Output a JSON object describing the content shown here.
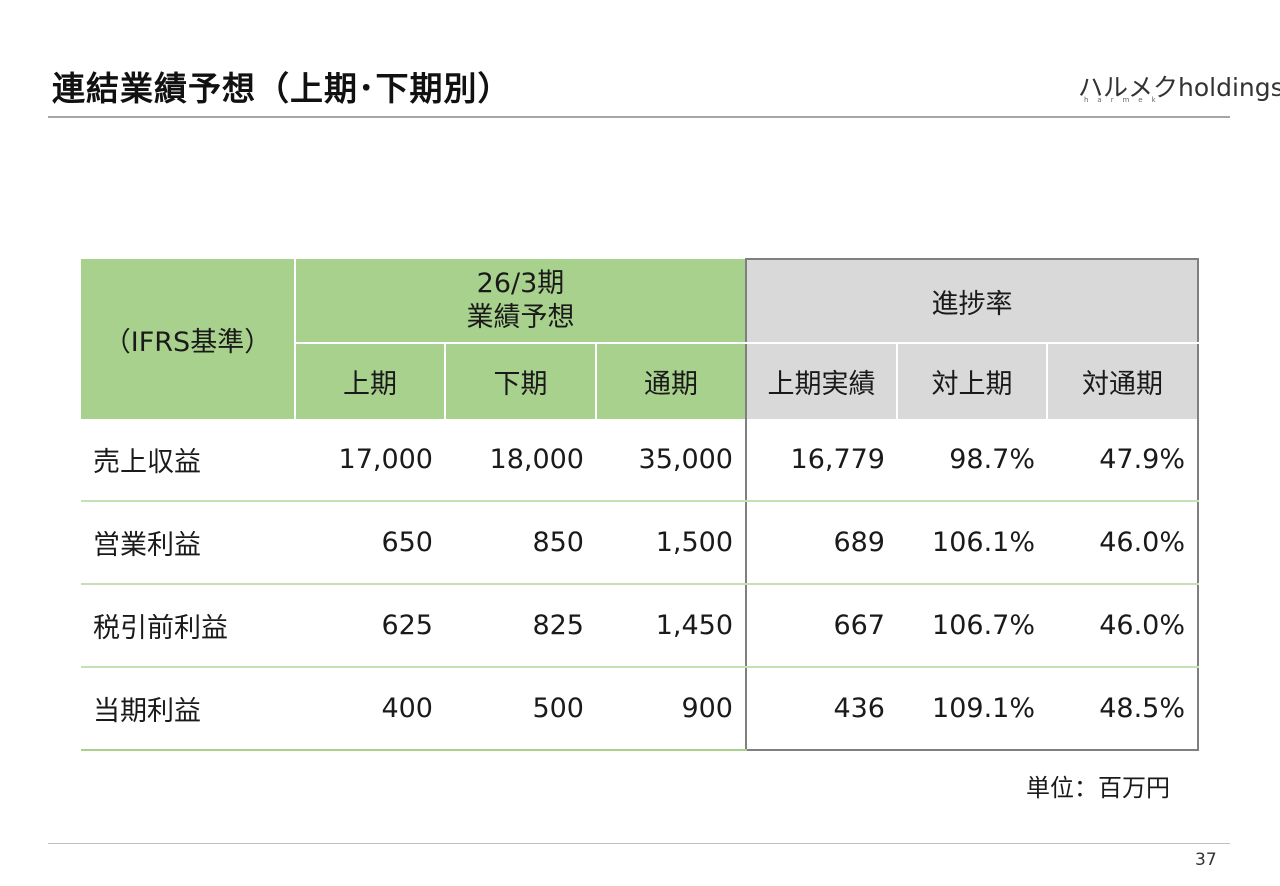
{
  "title": "連結業績予想（上期･下期別）",
  "logo": {
    "text": "ハルメクholdings",
    "sub": "harmek"
  },
  "page_number": "37",
  "unit_note": "単位：百万円",
  "table": {
    "corner": "（IFRS基準）",
    "group_forecast_line1": "26/3期",
    "group_forecast_line2": "業績予想",
    "group_progress": "進捗率",
    "columns": [
      "上期",
      "下期",
      "通期",
      "上期実績",
      "対上期",
      "対通期"
    ],
    "rows": [
      {
        "label": "売上収益",
        "values": [
          "17,000",
          "18,000",
          "35,000",
          "16,779",
          "98.7%",
          "47.9%"
        ]
      },
      {
        "label": "営業利益",
        "values": [
          "650",
          "850",
          "1,500",
          "689",
          "106.1%",
          "46.0%"
        ]
      },
      {
        "label": "税引前利益",
        "values": [
          "625",
          "825",
          "1,450",
          "667",
          "106.7%",
          "46.0%"
        ]
      },
      {
        "label": "当期利益",
        "values": [
          "400",
          "500",
          "900",
          "436",
          "109.1%",
          "48.5%"
        ]
      }
    ]
  },
  "colors": {
    "header_green": "#a9d18e",
    "header_gray": "#d9d9d9",
    "row_rule": "#c5e0b3"
  }
}
